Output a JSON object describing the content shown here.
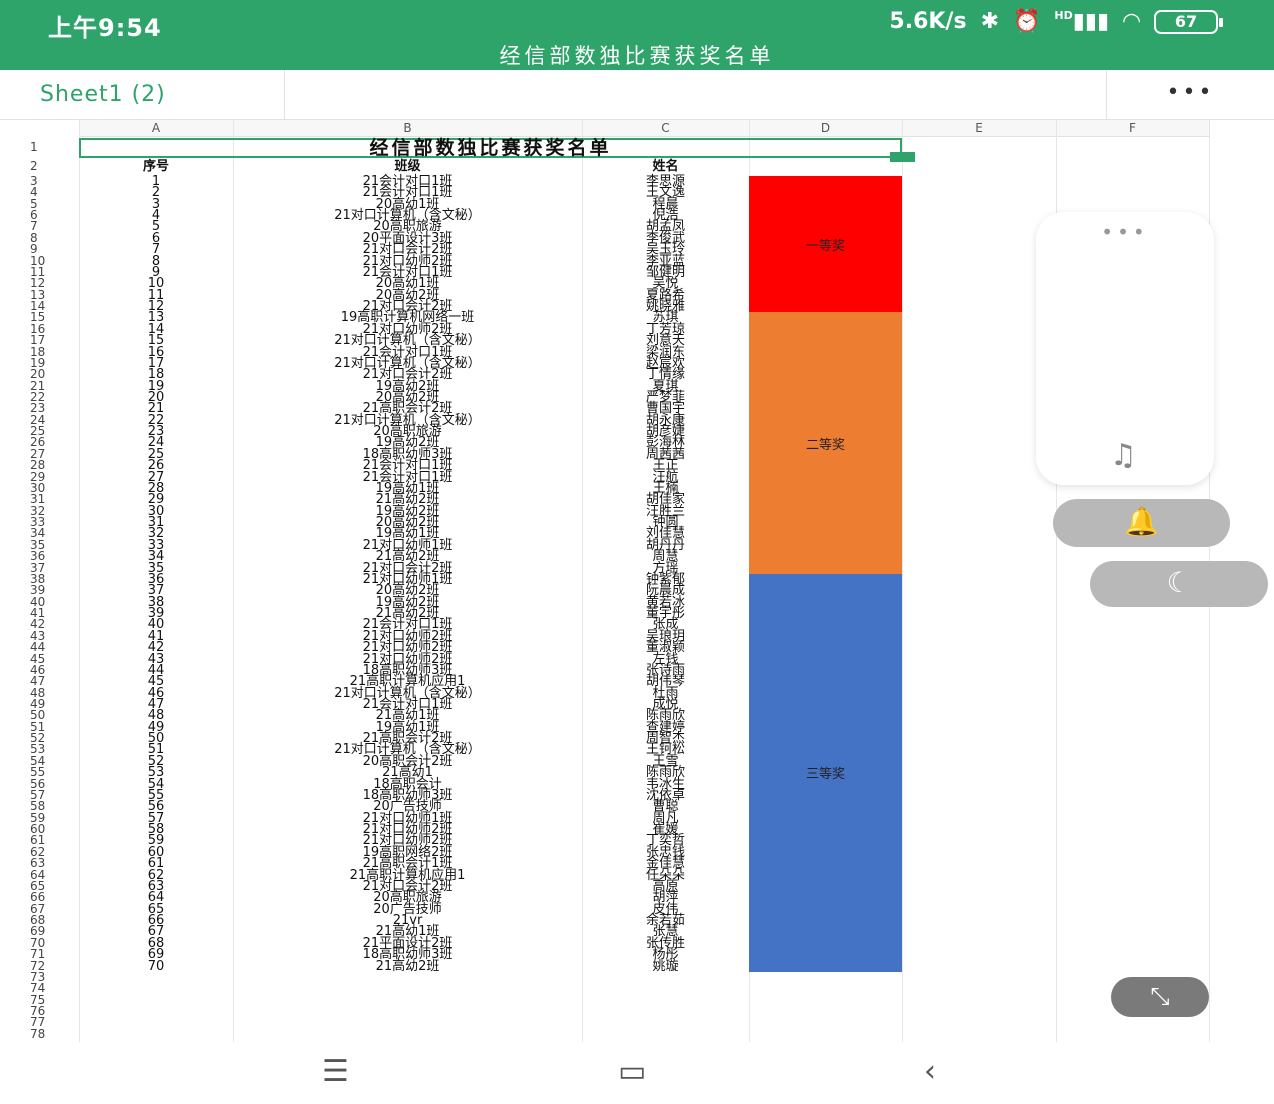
{
  "status": {
    "time": "上午9:54",
    "speed": "5.6K/s",
    "battery": "67",
    "signal": "HD"
  },
  "title": "经信部数独比赛获奖名单",
  "sheet_tab": "Sheet1 (2)",
  "more_label": "•••",
  "columns": [
    "A",
    "B",
    "C",
    "D",
    "E",
    "F"
  ],
  "sheet_title": "经信部数独比赛获奖名单",
  "headers": {
    "a": "序号",
    "b": "班级",
    "c": "姓名"
  },
  "rows": [
    [
      "1",
      "21会计对口1班",
      "李思源"
    ],
    [
      "2",
      "21会计对口1班",
      "王文逸"
    ],
    [
      "3",
      "20高幼1班",
      "程晨"
    ],
    [
      "4",
      "21对口计算机（含文秘）",
      "倪浩"
    ],
    [
      "5",
      "20高职旅游",
      "胡孟凤"
    ],
    [
      "6",
      "20平面设计3班",
      "李俊武"
    ],
    [
      "7",
      "21对口会计2班",
      "吴玉玲"
    ],
    [
      "8",
      "21对口幼师2班",
      "李亚蓝"
    ],
    [
      "9",
      "21会计对口1班",
      "邹健明"
    ],
    [
      "10",
      "20高幼1班",
      "吴悦"
    ],
    [
      "11",
      "20高幼2班",
      "夏路希"
    ],
    [
      "12",
      "21对口会计2班",
      "姚晓雅"
    ],
    [
      "13",
      "19高职计算机网络一班",
      "苏琪"
    ],
    [
      "14",
      "21对口幼师2班",
      "丁芳琼"
    ],
    [
      "15",
      "21对口计算机（含文秘）",
      "刘意天"
    ],
    [
      "16",
      "21会计对口1班",
      "梁润东"
    ],
    [
      "17",
      "21对口计算机（含文秘）",
      "赵宸欢"
    ],
    [
      "18",
      "21对口会计2班",
      "丁情缘"
    ],
    [
      "19",
      "19高幼2班",
      "夏琪"
    ],
    [
      "20",
      "20高幼2班",
      "严梦菲"
    ],
    [
      "21",
      "21高职会计2班",
      "曹国宇"
    ],
    [
      "22",
      "21对口计算机（含文秘）",
      "胡永康"
    ],
    [
      "23",
      "20高职旅游",
      "胡彦婕"
    ],
    [
      "24",
      "19高幼2班",
      "彭海林"
    ],
    [
      "25",
      "18高职幼师3班",
      "周茜茜"
    ],
    [
      "26",
      "21会计对口1班",
      "王正"
    ],
    [
      "27",
      "21会计对口1班",
      "汪航"
    ],
    [
      "28",
      "19高幼1班",
      "王楠"
    ],
    [
      "29",
      "21高幼2班",
      "胡佳家"
    ],
    [
      "30",
      "19高幼2班",
      "汪胜兰"
    ],
    [
      "31",
      "20高幼2班",
      "钟圆"
    ],
    [
      "32",
      "19高幼1班",
      "刘佳慧"
    ],
    [
      "33",
      "21对口幼师1班",
      "胡丹丹"
    ],
    [
      "34",
      "21高幼2班",
      "周慧"
    ],
    [
      "35",
      "21对口会计2班",
      "方瑶"
    ],
    [
      "36",
      "21对口幼师1班",
      "钟紫郁"
    ],
    [
      "37",
      "20高幼2班",
      "阮晨成"
    ],
    [
      "38",
      "19高幼2班",
      "黄若冰"
    ],
    [
      "39",
      "21高幼2班",
      "董宇彤"
    ],
    [
      "40",
      "21会计对口1班",
      "张成"
    ],
    [
      "41",
      "21对口幼师2班",
      "吴琅玥"
    ],
    [
      "42",
      "21对口幼师2班",
      "董淑颖"
    ],
    [
      "43",
      "21对口幼师2班",
      "左钱"
    ],
    [
      "44",
      "18高职幼师3班",
      "张诗雨"
    ],
    [
      "45",
      "21高职计算机应用1",
      "胡伟琴"
    ],
    [
      "46",
      "21对口计算机（含文秘）",
      "杜雨"
    ],
    [
      "47",
      "21会计对口1班",
      "成悦"
    ],
    [
      "48",
      "21高幼1班",
      "陈雨欣"
    ],
    [
      "49",
      "19高幼1班",
      "查建婷"
    ],
    [
      "50",
      "21高职会计2班",
      "周智杰"
    ],
    [
      "51",
      "21对口计算机（含文秘）",
      "王钶松"
    ],
    [
      "52",
      "20高职会计2班",
      "王雪"
    ],
    [
      "53",
      "21高幼1",
      "陈雨欣"
    ],
    [
      "54",
      "18高职会计",
      "韦冰生"
    ],
    [
      "55",
      "18高职幼师3班",
      "沈依卓"
    ],
    [
      "56",
      "20广告技师",
      "曹聪"
    ],
    [
      "57",
      "21对口幼师1班",
      "周凡"
    ],
    [
      "58",
      "21对口幼师2班",
      "崔媛"
    ],
    [
      "59",
      "21对口幼师2班",
      "丁奕哲"
    ],
    [
      "60",
      "19高职网络2班",
      "张忠钱"
    ],
    [
      "61",
      "21高职会计1班",
      "金佳慧"
    ],
    [
      "62",
      "21高职计算机应用1",
      "任朵朵"
    ],
    [
      "63",
      "21对口会计2班",
      "高原"
    ],
    [
      "64",
      "20高职旅游",
      "胡萍"
    ],
    [
      "65",
      "20广告技师",
      "皮伟"
    ],
    [
      "66",
      "21vr",
      "余若茹"
    ],
    [
      "67",
      "21高幼1班",
      "张慧"
    ],
    [
      "68",
      "21平面设计2班",
      "张传胜"
    ],
    [
      "69",
      "18高职幼师3班",
      "杨彤"
    ],
    [
      "70",
      "21高幼2班",
      "姚璇"
    ]
  ],
  "prizes": [
    {
      "label": "一等奖",
      "color": "#ff0000",
      "from": 1,
      "to": 12
    },
    {
      "label": "二等奖",
      "color": "#ed7d31",
      "from": 13,
      "to": 35
    },
    {
      "label": "三等奖",
      "color": "#4472c4",
      "from": 36,
      "to": 70
    }
  ],
  "row_numbers_total": 78,
  "icons": {
    "bluetooth": "bluetooth-icon",
    "alarm": "alarm-icon",
    "music": "music-note-icon",
    "bell": "bell-icon",
    "moon": "moon-icon",
    "expand": "expand-icon"
  }
}
